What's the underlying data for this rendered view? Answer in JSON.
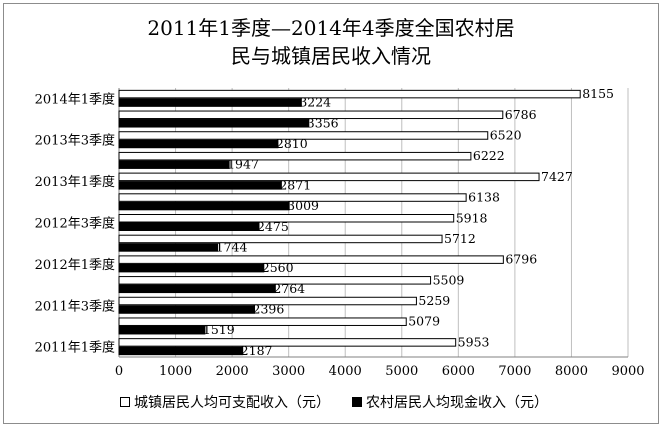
{
  "title_line1": "2011年1季度—2014年4季度全国农村居",
  "title_line2": "民与城镇居民收入情况",
  "colors": {
    "urban": "#ffffff",
    "rural": "#000000",
    "outline": "#000000",
    "grid": "#bfbfbf"
  },
  "chart_data": {
    "type": "bar",
    "orientation": "horizontal",
    "title": "2011年1季度—2014年4季度全国农村居民与城镇居民收入情况",
    "categories": [
      "2011年1季度",
      "",
      "2011年3季度",
      "",
      "2012年1季度",
      "",
      "2012年3季度",
      "",
      "2013年1季度",
      "",
      "2013年3季度",
      "",
      "2014年1季度"
    ],
    "series": [
      {
        "name": "城镇居民人均可支配收入（元）",
        "values": [
          5953,
          5079,
          5259,
          5509,
          6796,
          5712,
          5918,
          6138,
          7427,
          6222,
          6520,
          6786,
          8155
        ]
      },
      {
        "name": "农村居民人均现金收入（元）",
        "values": [
          2187,
          1519,
          2396,
          2764,
          2560,
          1744,
          2475,
          3009,
          2871,
          1947,
          2810,
          3356,
          3224
        ]
      }
    ],
    "xlim": [
      0,
      9000
    ],
    "xticks": [
      "0",
      "1000",
      "2000",
      "3000",
      "4000",
      "5000",
      "6000",
      "7000",
      "8000",
      "9000"
    ],
    "grid": true,
    "legend_position": "bottom"
  }
}
